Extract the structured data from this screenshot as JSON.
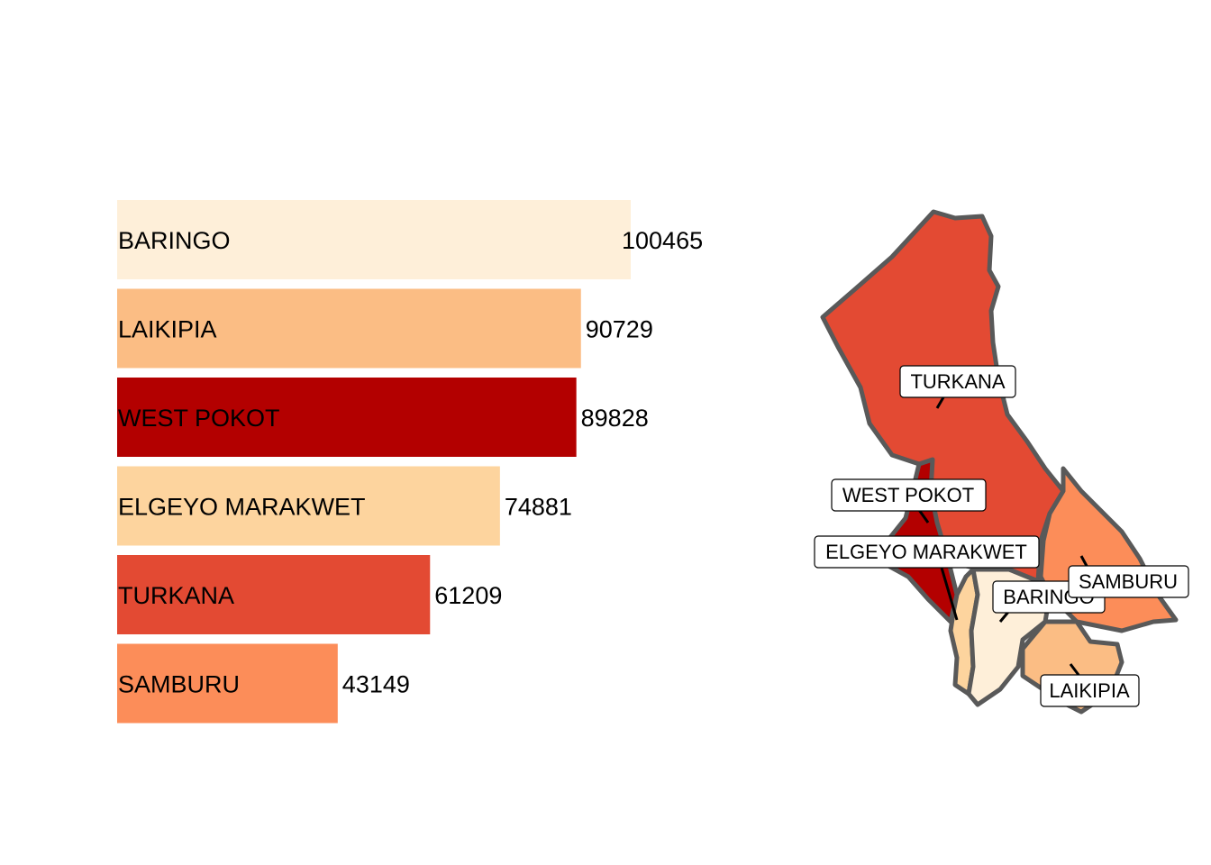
{
  "chart_data": {
    "type": "bar",
    "orientation": "horizontal",
    "categories": [
      "BARINGO",
      "LAIKIPIA",
      "WEST POKOT",
      "ELGEYO MARAKWET",
      "TURKANA",
      "SAMBURU"
    ],
    "values": [
      100465,
      90729,
      89828,
      74881,
      61209,
      43149
    ],
    "value_labels": [
      "100465",
      "90729",
      "89828",
      "74881",
      "61209",
      "43149"
    ],
    "colors": [
      "#FEEFD9",
      "#FBBD84",
      "#B30000",
      "#FDD49E",
      "#E34A33",
      "#FC8D59"
    ],
    "xlim": [
      0,
      105000
    ],
    "grid": false,
    "title": "",
    "xlabel": "",
    "ylabel": ""
  },
  "map": {
    "regions": [
      {
        "name": "TURKANA",
        "label": "TURKANA",
        "color": "#E34A33"
      },
      {
        "name": "WEST POKOT",
        "label": "WEST POKOT",
        "color": "#B30000"
      },
      {
        "name": "SAMBURU",
        "label": "SAMBURU",
        "color": "#FC8D59"
      },
      {
        "name": "ELGEYO MARAKWET",
        "label": "ELGEYO MARAKWET",
        "color": "#FDD49E"
      },
      {
        "name": "BARINGO",
        "label": "BARINGO",
        "color": "#FEEFD9"
      },
      {
        "name": "LAIKIPIA",
        "label": "LAIKIPIA",
        "color": "#FBBD84"
      }
    ],
    "border_color": "#595959"
  }
}
